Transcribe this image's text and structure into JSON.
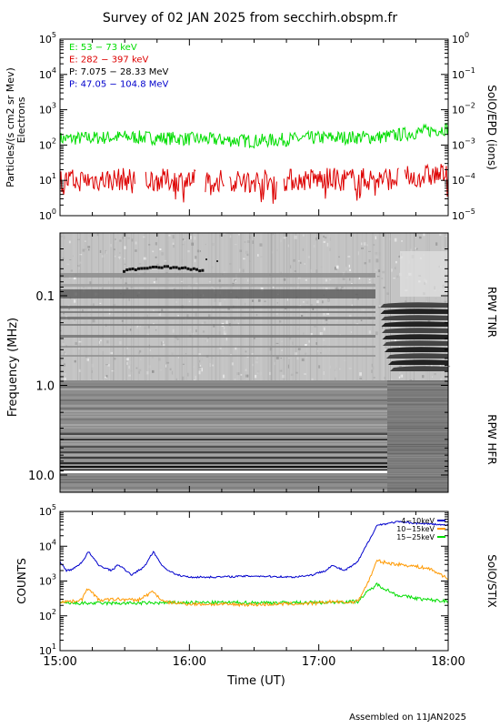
{
  "title": "Survey of 02 JAN 2025 from secchirh.obspm.fr",
  "footer": "Assembled on 11JAN2025",
  "x_ticks": [
    "15:00",
    "16:00",
    "17:00",
    "18:00"
  ],
  "x_label": "Time (UT)",
  "colors": {
    "green": "#00dd00",
    "red": "#dd0000",
    "black": "#000000",
    "blue": "#0000cc",
    "orange": "#ff9900"
  },
  "chart_data": [
    {
      "type": "line",
      "ylabel_left": "Particles/(s cm2 sr Mev)",
      "ylabel_left2": "Electrons",
      "ylabel_right": "SolO/EPD (ions)",
      "y_scale": "log",
      "ylim_left": [
        1,
        100000
      ],
      "ylim_right": [
        1e-05,
        1
      ],
      "yticks_left": [
        {
          "b": "10",
          "e": "0"
        },
        {
          "b": "10",
          "e": "1"
        },
        {
          "b": "10",
          "e": "2"
        },
        {
          "b": "10",
          "e": "3"
        },
        {
          "b": "10",
          "e": "4"
        },
        {
          "b": "10",
          "e": "5"
        }
      ],
      "yticks_right": [
        {
          "b": "10",
          "e": "−5"
        },
        {
          "b": "10",
          "e": "−4"
        },
        {
          "b": "10",
          "e": "−3"
        },
        {
          "b": "10",
          "e": "−2"
        },
        {
          "b": "10",
          "e": "−1"
        },
        {
          "b": "10",
          "e": "0"
        }
      ],
      "legend": [
        {
          "label": "E: 53 − 73 keV",
          "color": "#00dd00"
        },
        {
          "label": "E: 282 − 397 keV",
          "color": "#dd0000"
        },
        {
          "label": "P: 7.075 − 28.33 MeV",
          "color": "#000000"
        },
        {
          "label": "P: 47.05 − 104.8 MeV",
          "color": "#0000cc"
        }
      ],
      "series": [
        {
          "name": "E: 53 − 73 keV",
          "color": "#00dd00",
          "x_hours": [
            15,
            15.5,
            16,
            16.5,
            17,
            17.5,
            18
          ],
          "values": [
            150,
            170,
            150,
            130,
            160,
            170,
            300
          ]
        },
        {
          "name": "E: 282 − 397 keV",
          "color": "#dd0000",
          "x_hours": [
            15,
            15.5,
            16,
            16.5,
            17,
            17.5,
            18
          ],
          "values": [
            9,
            10,
            9,
            9,
            10,
            10,
            14
          ]
        }
      ]
    },
    {
      "type": "heatmap",
      "ylabel": "Frequency (MHz)",
      "yticks": [
        "0.1",
        "1.0",
        "10.0"
      ],
      "y_scale": "log",
      "ylim": [
        0.02,
        16
      ],
      "label_tnr": "RPW TNR",
      "label_hfr": "RPW HFR"
    },
    {
      "type": "line",
      "ylabel": "COUNTS",
      "ylabel_right": "SolO/STIX",
      "y_scale": "log",
      "ylim": [
        10,
        100000
      ],
      "yticks": [
        {
          "b": "10",
          "e": "1"
        },
        {
          "b": "10",
          "e": "2"
        },
        {
          "b": "10",
          "e": "3"
        },
        {
          "b": "10",
          "e": "4"
        },
        {
          "b": "10",
          "e": "5"
        }
      ],
      "series": [
        {
          "name": "4−10keV",
          "color": "#0000cc",
          "x_hours": [
            15,
            15.05,
            15.1,
            15.17,
            15.22,
            15.3,
            15.4,
            15.45,
            15.55,
            15.65,
            15.72,
            15.8,
            15.9,
            16,
            16.2,
            16.5,
            16.8,
            16.95,
            17.05,
            17.1,
            17.2,
            17.3,
            17.45,
            17.6,
            17.8,
            18
          ],
          "values": [
            3500,
            2000,
            2200,
            3500,
            7000,
            2800,
            2000,
            3000,
            1500,
            2500,
            7000,
            2500,
            1500,
            1300,
            1300,
            1400,
            1300,
            1500,
            2000,
            2800,
            2000,
            3500,
            40000,
            50000,
            45000,
            40000
          ]
        },
        {
          "name": "10−15keV",
          "color": "#ff9900",
          "x_hours": [
            15,
            15.1,
            15.17,
            15.22,
            15.3,
            15.45,
            15.6,
            15.72,
            15.8,
            16,
            16.5,
            17,
            17.1,
            17.2,
            17.3,
            17.38,
            17.45,
            17.55,
            17.7,
            17.85,
            18
          ],
          "values": [
            260,
            260,
            300,
            650,
            280,
            300,
            280,
            500,
            250,
            220,
            210,
            230,
            260,
            240,
            260,
            900,
            3800,
            3200,
            2800,
            2300,
            1200
          ]
        },
        {
          "name": "15−25keV",
          "color": "#00dd00",
          "x_hours": [
            15,
            15.5,
            16,
            16.5,
            17,
            17.3,
            17.38,
            17.45,
            17.6,
            17.8,
            18
          ],
          "values": [
            230,
            230,
            240,
            240,
            240,
            260,
            500,
            800,
            400,
            300,
            260
          ]
        }
      ]
    }
  ]
}
